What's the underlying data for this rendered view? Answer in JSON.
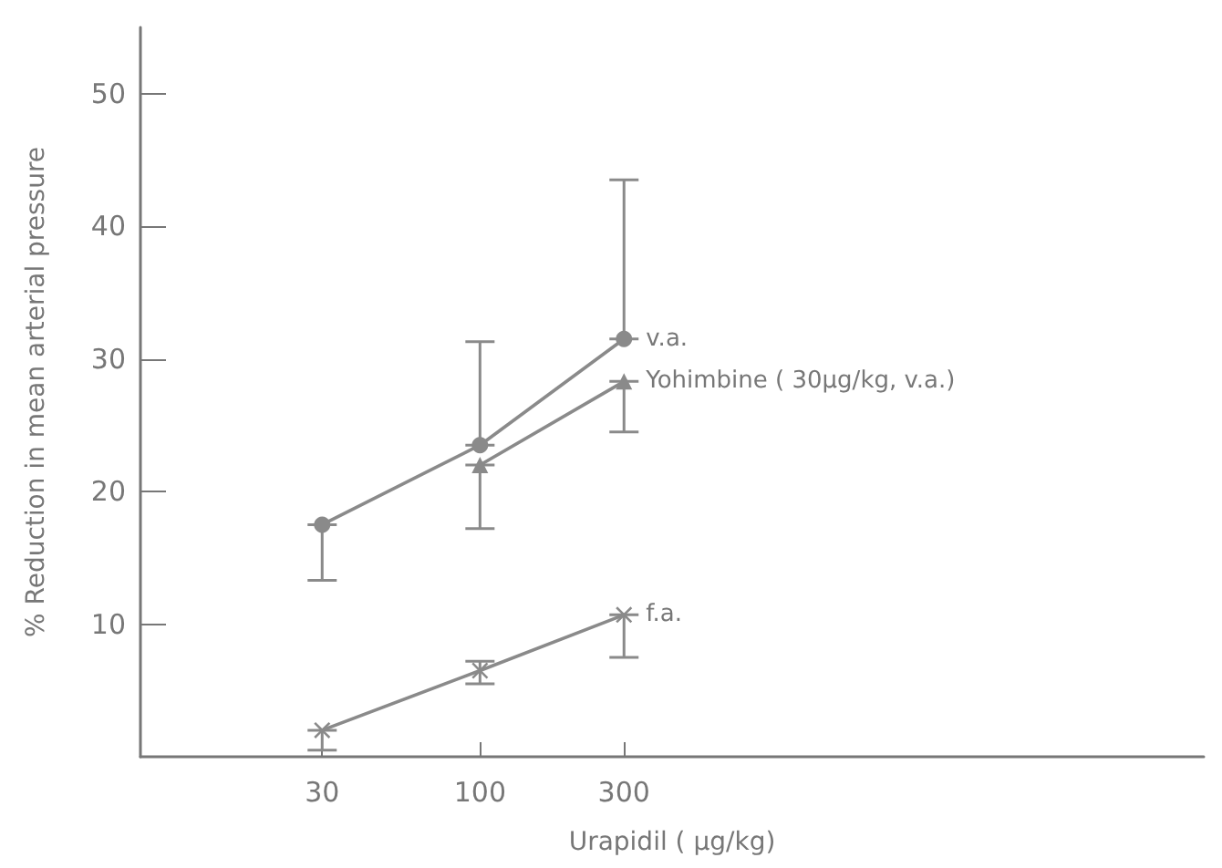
{
  "chart_data": {
    "type": "line",
    "xlabel": "Urapidil ( μg/kg)",
    "ylabel": "% Reduction in mean arterial pressure",
    "x": [
      30,
      100,
      300
    ],
    "log": "x",
    "xlim": [
      7.5,
      25000
    ],
    "xticks": [
      30,
      100,
      300
    ],
    "ylim": [
      0,
      55
    ],
    "yticks": [
      10,
      20,
      30,
      40,
      50
    ],
    "grid": false,
    "legend": false,
    "line_style": "solid",
    "series": [
      {
        "name": "v.a.",
        "color": "#8a8a8a",
        "marker": "circle",
        "values": [
          17.5,
          23.5,
          31.5
        ],
        "errors": [
          [
            13.3,
            17.5
          ],
          [
            23.5,
            31.3
          ],
          [
            31.5,
            43.5
          ]
        ]
      },
      {
        "name": "Yohimbine ( 30μg/kg, v.a.)",
        "color": "#8a8a8a",
        "marker": "triangle",
        "values": [
          null,
          22,
          28.3
        ],
        "errors": [
          null,
          [
            17.2,
            22
          ],
          [
            24.5,
            28.3
          ]
        ]
      },
      {
        "name": "f.a.",
        "color": "#8a8a8a",
        "marker": "cross",
        "values": [
          2.0,
          6.5,
          10.7
        ],
        "errors": [
          [
            0.5,
            2.0
          ],
          [
            5.5,
            7.2
          ],
          [
            7.5,
            10.7
          ]
        ]
      }
    ]
  }
}
